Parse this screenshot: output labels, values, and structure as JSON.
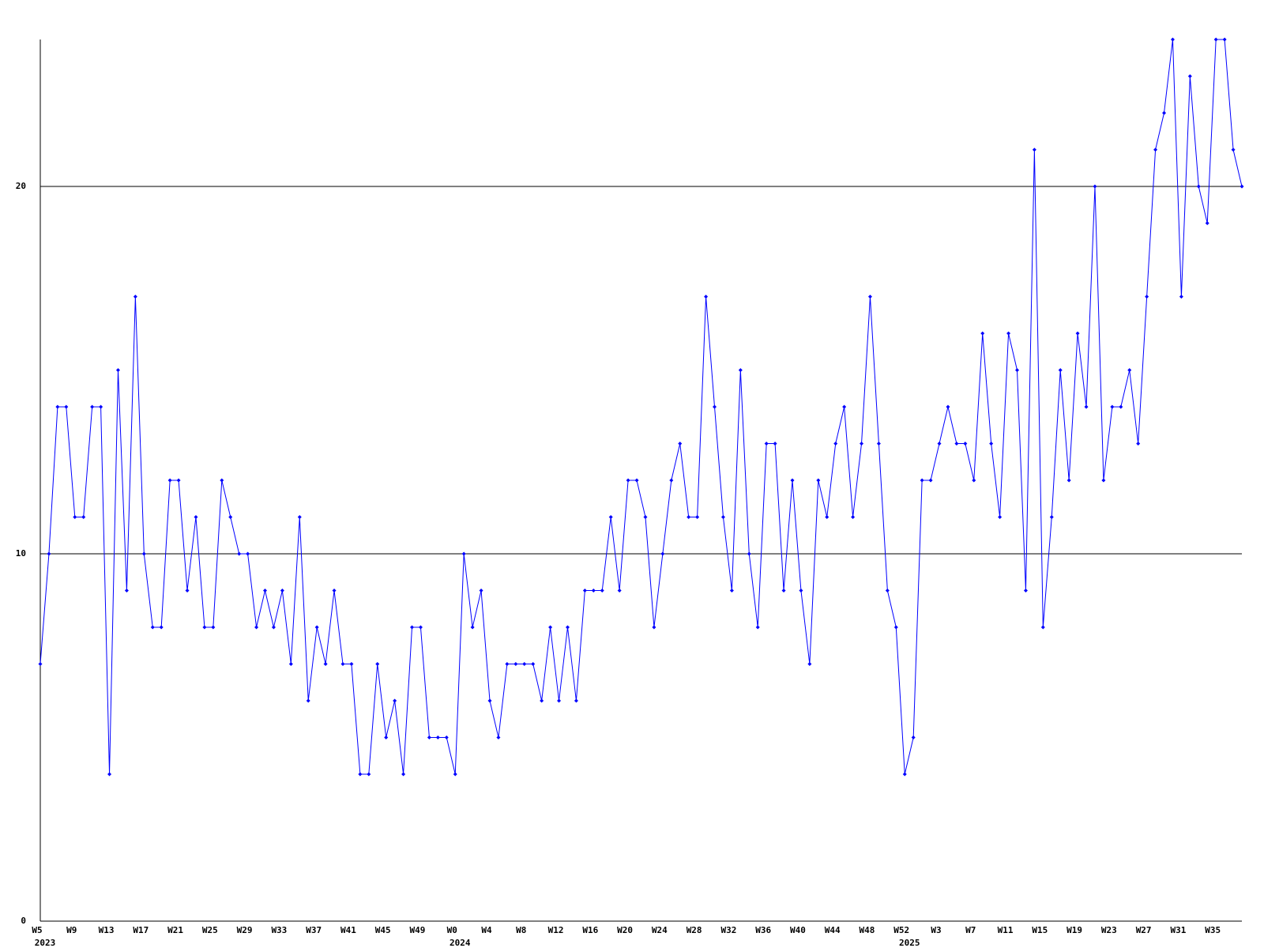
{
  "chart_data": {
    "type": "line",
    "categories": [
      "W5",
      null,
      null,
      null,
      "W9",
      null,
      null,
      null,
      "W13",
      null,
      null,
      null,
      "W17",
      null,
      null,
      null,
      "W21",
      null,
      null,
      null,
      "W25",
      null,
      null,
      null,
      "W29",
      null,
      null,
      null,
      "W33",
      null,
      null,
      null,
      "W37",
      null,
      null,
      null,
      "W41",
      null,
      null,
      null,
      "W45",
      null,
      null,
      null,
      "W49",
      null,
      null,
      null,
      "W0",
      null,
      null,
      null,
      "W4",
      null,
      null,
      null,
      "W8",
      null,
      null,
      null,
      "W12",
      null,
      null,
      null,
      "W16",
      null,
      null,
      null,
      "W20",
      null,
      null,
      null,
      "W24",
      null,
      null,
      null,
      "W28",
      null,
      null,
      null,
      "W32",
      null,
      null,
      null,
      "W36",
      null,
      null,
      null,
      "W40",
      null,
      null,
      null,
      "W44",
      null,
      null,
      null,
      "W48",
      null,
      null,
      null,
      "W52",
      null,
      null,
      null,
      "W3",
      null,
      null,
      null,
      "W7",
      null,
      null,
      null,
      "W11",
      null,
      null,
      null,
      "W15",
      null,
      null,
      null,
      "W19",
      null,
      null,
      null,
      "W23",
      null,
      null,
      null,
      "W27",
      null,
      null,
      null,
      "W31",
      null,
      null,
      null,
      "W35",
      null,
      null,
      null
    ],
    "category_years": [
      "2023",
      null,
      null,
      null,
      null,
      null,
      null,
      null,
      null,
      null,
      null,
      null,
      null,
      null,
      null,
      null,
      null,
      null,
      null,
      null,
      null,
      null,
      null,
      null,
      null,
      null,
      null,
      null,
      null,
      null,
      null,
      null,
      null,
      null,
      null,
      null,
      null,
      null,
      null,
      null,
      null,
      null,
      null,
      null,
      null,
      null,
      null,
      null,
      "2024",
      null,
      null,
      null,
      null,
      null,
      null,
      null,
      null,
      null,
      null,
      null,
      null,
      null,
      null,
      null,
      null,
      null,
      null,
      null,
      null,
      null,
      null,
      null,
      null,
      null,
      null,
      null,
      null,
      null,
      null,
      null,
      null,
      null,
      null,
      null,
      null,
      null,
      null,
      null,
      null,
      null,
      null,
      null,
      null,
      null,
      null,
      null,
      null,
      null,
      null,
      null,
      "2025",
      null,
      null,
      null,
      null,
      null,
      null,
      null,
      null,
      null,
      null,
      null,
      null,
      null,
      null,
      null,
      null,
      null,
      null,
      null,
      null,
      null,
      null,
      null,
      null,
      null,
      null,
      null,
      null,
      null,
      null,
      null,
      null,
      null,
      null,
      null,
      null,
      null,
      null,
      null
    ],
    "values": [
      7,
      10,
      14,
      14,
      11,
      11,
      14,
      14,
      4,
      15,
      9,
      17,
      10,
      8,
      8,
      12,
      12,
      9,
      11,
      8,
      8,
      12,
      11,
      10,
      10,
      8,
      9,
      8,
      9,
      7,
      11,
      6,
      8,
      7,
      9,
      7,
      7,
      4,
      4,
      7,
      5,
      6,
      4,
      8,
      8,
      5,
      5,
      5,
      4,
      10,
      8,
      9,
      6,
      5,
      7,
      7,
      7,
      7,
      6,
      8,
      6,
      8,
      6,
      9,
      9,
      9,
      11,
      9,
      12,
      12,
      11,
      8,
      10,
      12,
      13,
      11,
      11,
      17,
      14,
      11,
      9,
      15,
      10,
      8,
      13,
      13,
      9,
      12,
      9,
      7,
      12,
      11,
      13,
      14,
      11,
      13,
      17,
      13,
      9,
      8,
      4,
      5,
      12,
      12,
      13,
      14,
      13,
      13,
      12,
      16,
      13,
      11,
      16,
      15,
      9,
      21,
      8,
      11,
      15,
      12,
      16,
      14,
      20,
      12,
      14,
      14,
      15,
      13,
      17,
      21,
      22,
      24,
      17,
      23,
      20,
      19,
      24,
      24,
      21,
      20
    ],
    "color": "#0000ff",
    "ylim": [
      0,
      24
    ],
    "yticks": [
      0,
      10,
      20
    ],
    "grid": true
  }
}
